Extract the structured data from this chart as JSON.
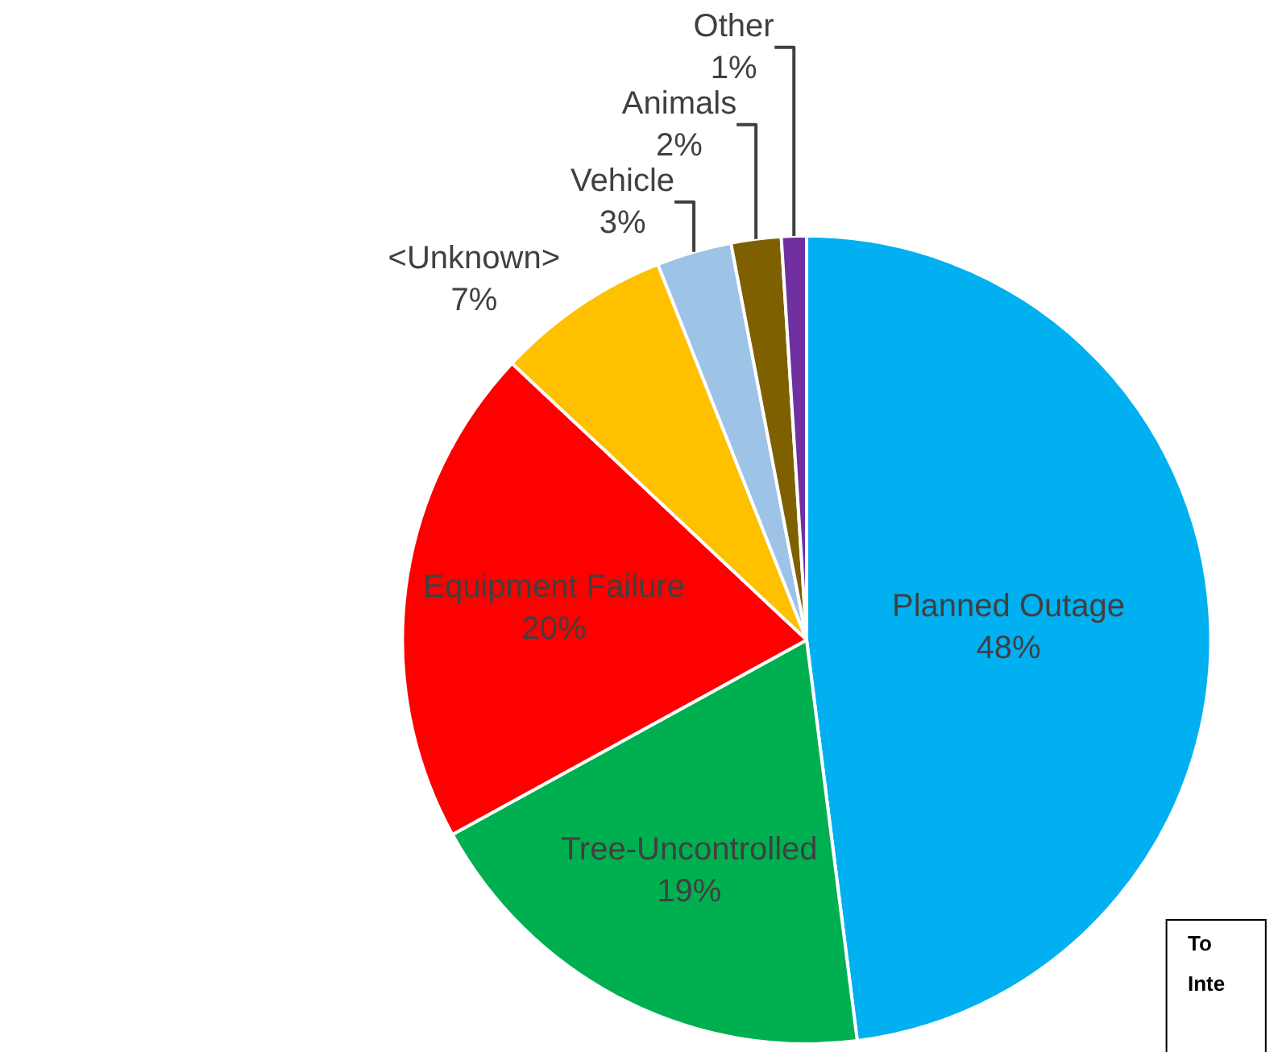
{
  "chart_data": {
    "type": "pie",
    "categories": [
      "Planned Outage",
      "Tree-Uncontrolled",
      "Equipment Failure",
      "<Unknown>",
      "Vehicle",
      "Animals",
      "Other"
    ],
    "values": [
      48,
      19,
      20,
      7,
      3,
      2,
      1
    ],
    "value_labels": [
      "48%",
      "19%",
      "20%",
      "7%",
      "3%",
      "2%",
      "1%"
    ],
    "colors": [
      "#00b0f0",
      "#00b050",
      "#ff0000",
      "#ffc000",
      "#9dc3e6",
      "#7f6000",
      "#7030a0"
    ],
    "annotations": [
      "To",
      "Inte"
    ]
  }
}
